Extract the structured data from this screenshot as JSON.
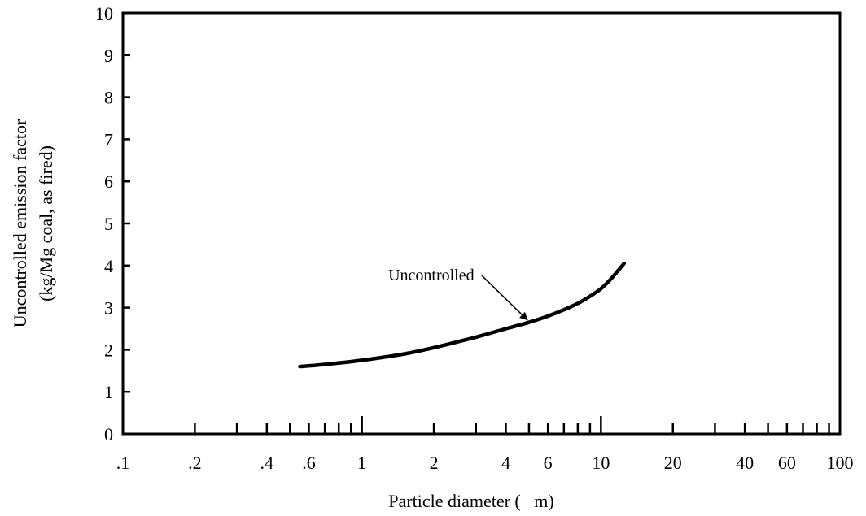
{
  "chart_data": {
    "type": "line",
    "title": "",
    "xlabel": "Particle diameter (   m)",
    "ylabel_lines": [
      "Uncontrolled emission factor",
      "(kg/Mg coal, as fired)"
    ],
    "xscale": "log",
    "xlim": [
      0.1,
      100
    ],
    "ylim": [
      0,
      10
    ],
    "grid": false,
    "legend": "none",
    "x_tick_labels": [
      {
        "value": 0.1,
        "label": ".1"
      },
      {
        "value": 0.2,
        "label": ".2"
      },
      {
        "value": 0.4,
        "label": ".4"
      },
      {
        "value": 0.6,
        "label": ".6"
      },
      {
        "value": 1,
        "label": "1"
      },
      {
        "value": 2,
        "label": "2"
      },
      {
        "value": 4,
        "label": "4"
      },
      {
        "value": 6,
        "label": "6"
      },
      {
        "value": 10,
        "label": "10"
      },
      {
        "value": 20,
        "label": "20"
      },
      {
        "value": 40,
        "label": "40"
      },
      {
        "value": 60,
        "label": "60"
      },
      {
        "value": 100,
        "label": "100"
      }
    ],
    "x_minor_ticks": [
      0.2,
      0.3,
      0.4,
      0.5,
      0.6,
      0.7,
      0.8,
      0.9,
      1,
      2,
      3,
      4,
      5,
      6,
      7,
      8,
      9,
      10,
      20,
      30,
      40,
      50,
      60,
      70,
      80,
      90
    ],
    "y_ticks": [
      0,
      1,
      2,
      3,
      4,
      5,
      6,
      7,
      8,
      9,
      10
    ],
    "series": [
      {
        "name": "",
        "color": "#000000",
        "x": [
          0.55,
          0.7,
          1,
          1.5,
          2,
          3,
          4,
          5,
          6,
          7,
          8,
          9,
          10,
          11,
          12.5
        ],
        "y": [
          1.6,
          1.65,
          1.75,
          1.9,
          2.05,
          2.3,
          2.5,
          2.65,
          2.8,
          2.95,
          3.1,
          3.27,
          3.45,
          3.68,
          4.05
        ]
      }
    ],
    "annotations": [
      {
        "text": "Uncontrolled",
        "arrow_to": {
          "x": 5,
          "y": 2.65
        },
        "label_at": {
          "x": 1.95,
          "y": 3.65
        }
      }
    ]
  }
}
